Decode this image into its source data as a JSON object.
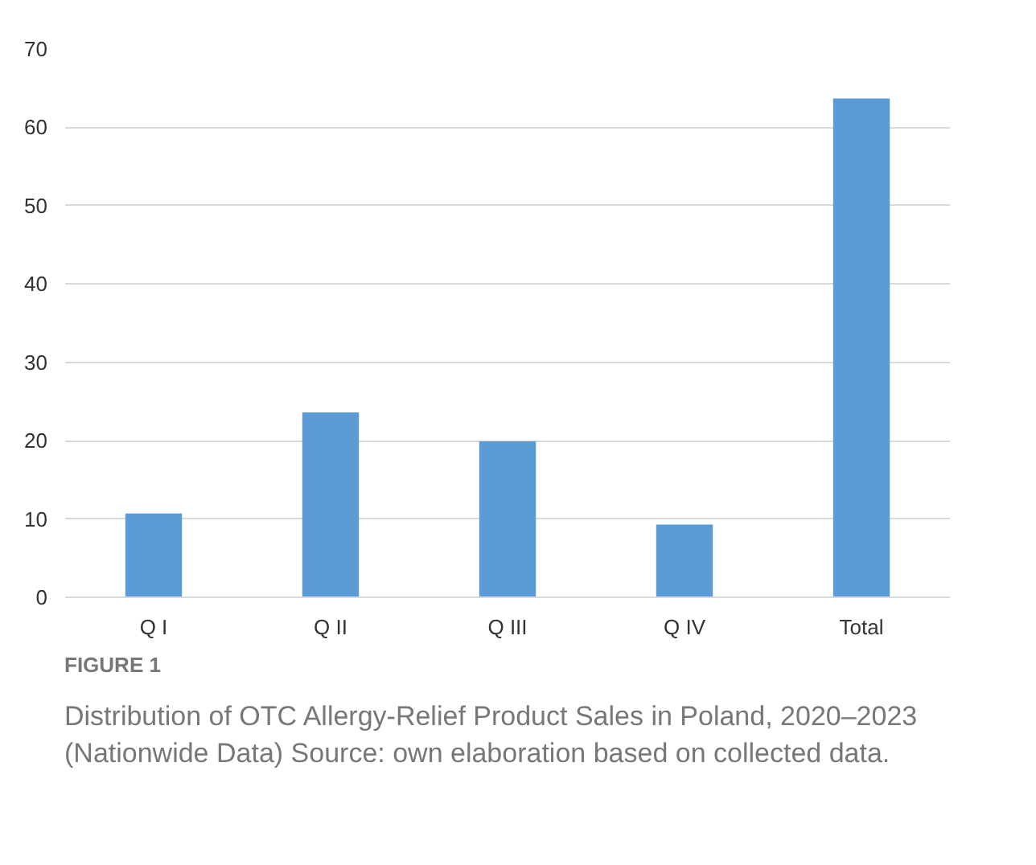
{
  "chart_data": {
    "type": "bar",
    "categories": [
      "Q I",
      "Q II",
      "Q III",
      "Q IV",
      "Total"
    ],
    "values": [
      10.7,
      23.6,
      19.9,
      9.3,
      63.7
    ],
    "color": "#5b9bd5",
    "ylim": [
      0,
      70
    ],
    "yticks": [
      0,
      10,
      20,
      30,
      40,
      50,
      60,
      70
    ],
    "grid": "y",
    "annotations": [
      "FIGURE 1",
      "Distribution of OTC Allergy-Relief Product Sales in Poland, 2020–2023 (Nationwide Data) Source: own elaboration based on collected data."
    ]
  }
}
